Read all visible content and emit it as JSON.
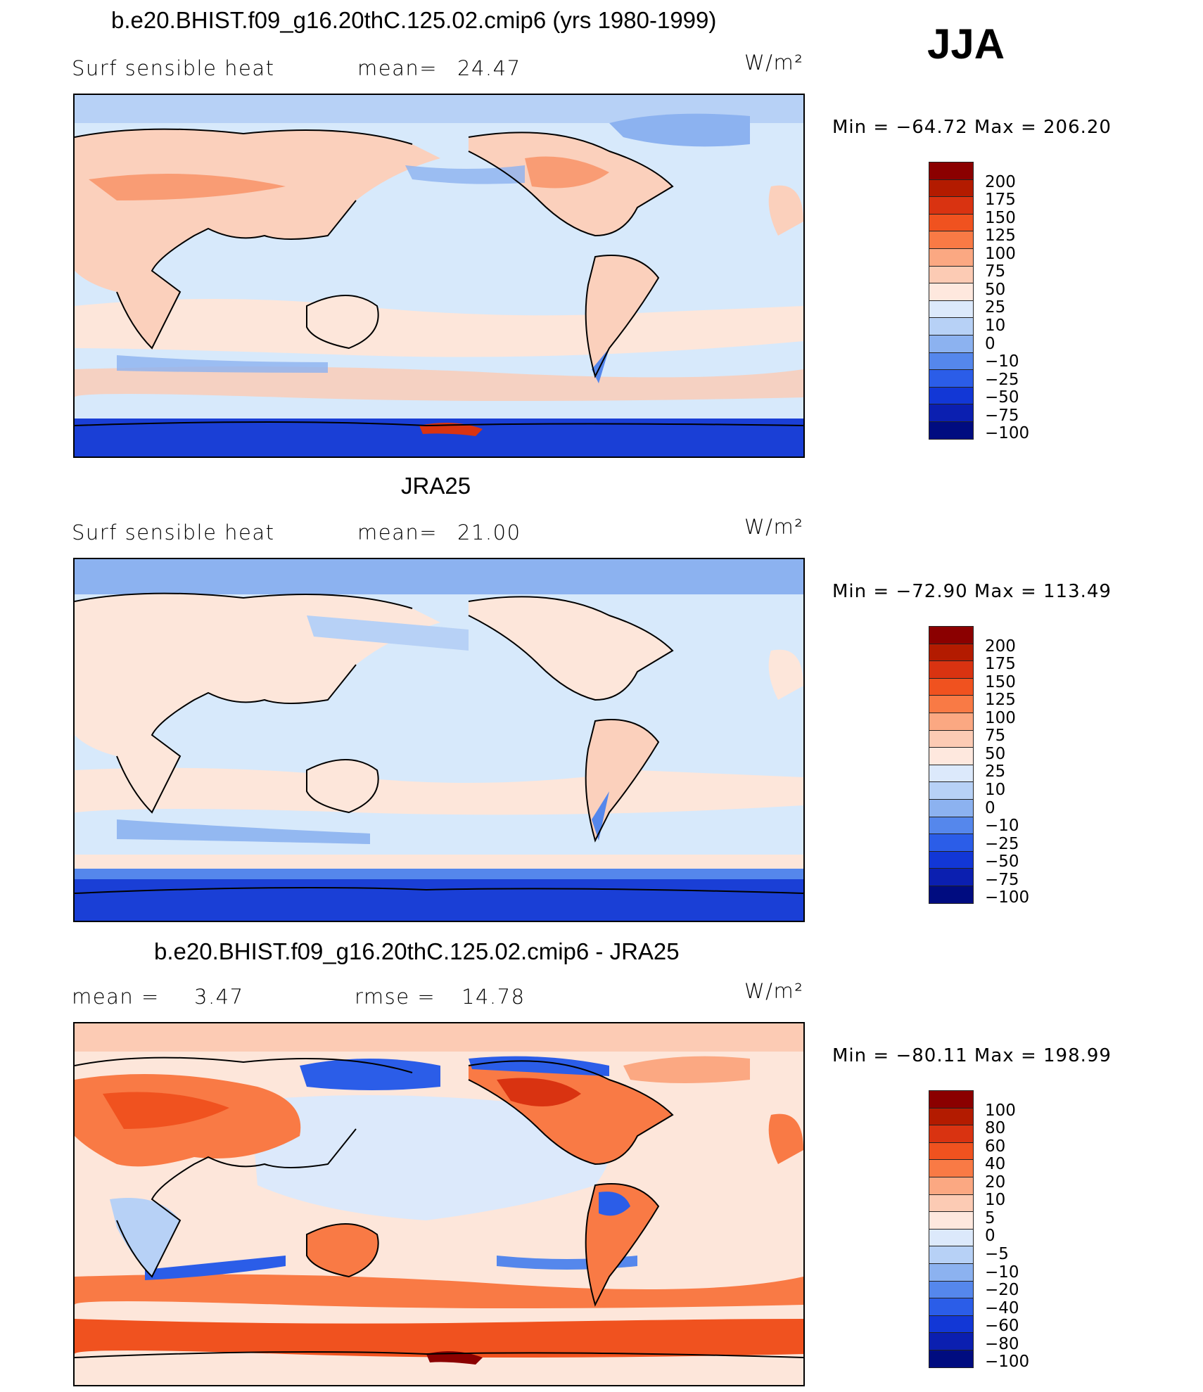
{
  "season": "JJA",
  "units_label": "W/m²",
  "colors": {
    "ocean_light": "#d7e9fb",
    "land_warm": "#fbd0bc",
    "cold": "#2a59e8",
    "antarctic": "#1a3fd6",
    "hot": "#e24a1c",
    "peach": "#fde6da"
  },
  "palette": [
    "#8b0000",
    "#b31b00",
    "#d93311",
    "#f0521f",
    "#f97a45",
    "#fba882",
    "#fccbb4",
    "#fee8de",
    "#dce9fb",
    "#b7d1f6",
    "#8cb2f0",
    "#5587ec",
    "#2b5de8",
    "#1237d6",
    "#0b1fb0",
    "#000c80"
  ],
  "chart_data": [
    {
      "type": "heatmap",
      "title": "b.e20.BHIST.f09_g16.20thC.125.02.cmip6 (yrs 1980-1999)",
      "variable": "Surf  sensible  heat",
      "stat_label": "mean=",
      "stat_value": "24.47",
      "units": "W/m²",
      "min_label": "Min  =  −64.72  Max  =  206.20",
      "min": -64.72,
      "max": 206.2,
      "colorbar_levels": [
        "200",
        "175",
        "150",
        "125",
        "100",
        "75",
        "50",
        "25",
        "10",
        "0",
        "−10",
        "−25",
        "−50",
        "−75",
        "−100"
      ]
    },
    {
      "type": "heatmap",
      "title": "JRA25",
      "variable": "Surf  sensible  heat",
      "stat_label": "mean=",
      "stat_value": "21.00",
      "units": "W/m²",
      "min_label": "Min  =  −72.90  Max  =  113.49",
      "min": -72.9,
      "max": 113.49,
      "colorbar_levels": [
        "200",
        "175",
        "150",
        "125",
        "100",
        "75",
        "50",
        "25",
        "10",
        "0",
        "−10",
        "−25",
        "−50",
        "−75",
        "−100"
      ]
    },
    {
      "type": "heatmap",
      "title": "b.e20.BHIST.f09_g16.20thC.125.02.cmip6 - JRA25",
      "stat_label": "mean  =",
      "stat_value": "3.47",
      "stat2_label": "rmse  =",
      "stat2_value": "14.78",
      "units": "W/m²",
      "min_label": "Min  =  −80.11  Max  =  198.99",
      "min": -80.11,
      "max": 198.99,
      "colorbar_levels": [
        "100",
        "80",
        "60",
        "40",
        "20",
        "10",
        "5",
        "0",
        "−5",
        "−10",
        "−20",
        "−40",
        "−60",
        "−80",
        "−100"
      ]
    }
  ]
}
